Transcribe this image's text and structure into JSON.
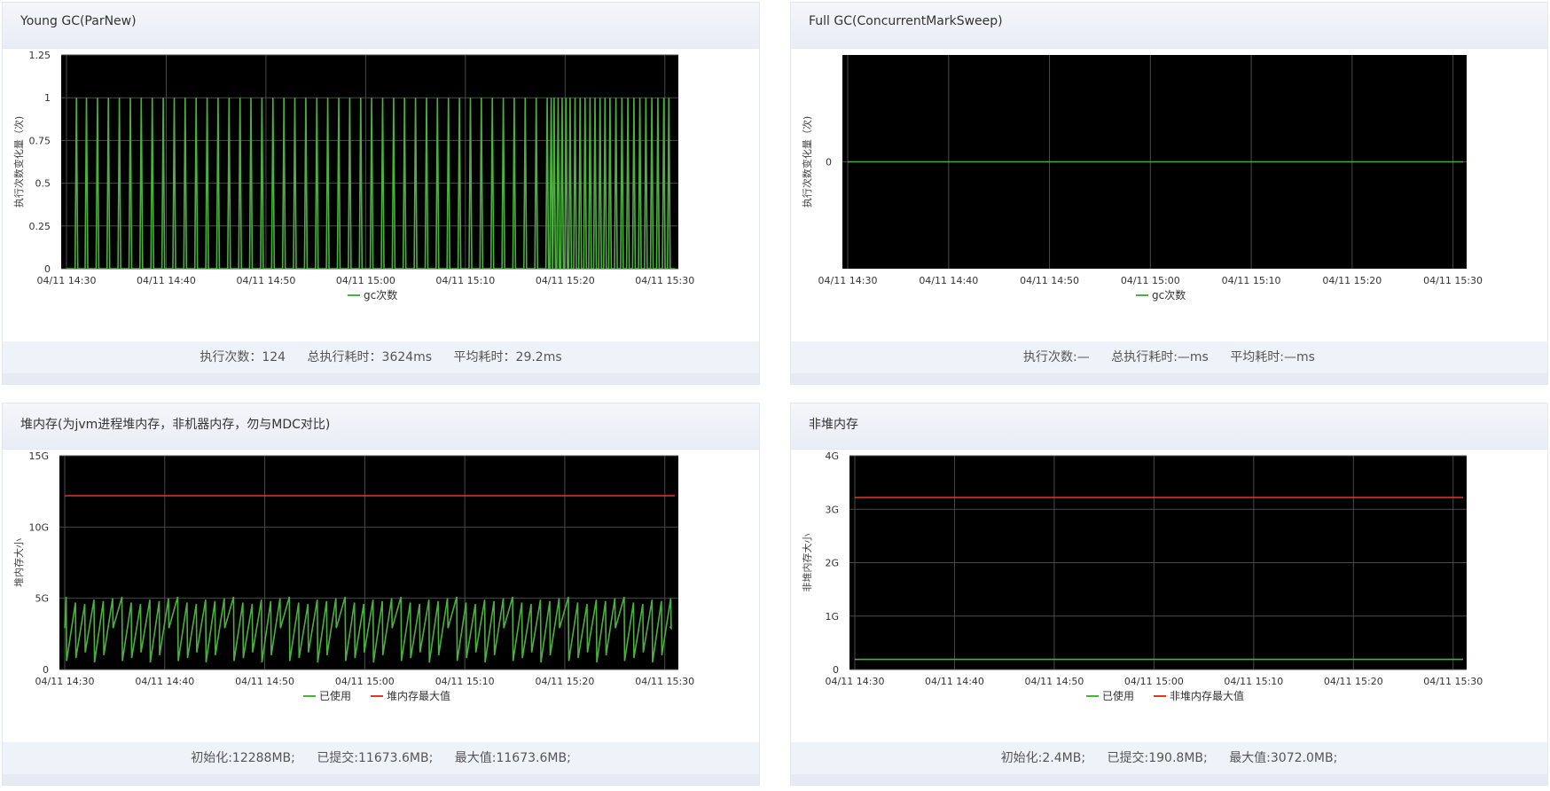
{
  "panels": [
    {
      "title": "Young GC(ParNew)",
      "footer": [
        "执行次数：124",
        "总执行耗时：3624ms",
        "平均耗时：29.2ms"
      ],
      "chart_data": {
        "type": "line",
        "title": "Young GC(ParNew)",
        "ylabel": "执行次数变化量（次)",
        "xlabel": "",
        "x_ticks": [
          "04/11 14:30",
          "04/11 14:40",
          "04/11 14:50",
          "04/11 15:00",
          "04/11 15:10",
          "04/11 15:20",
          "04/11 15:30"
        ],
        "y_ticks": [
          "0",
          "0.25",
          "0.5",
          "0.75",
          "1",
          "1.25"
        ],
        "ylim": [
          0,
          1.25
        ],
        "xlim_minutes": [
          0,
          61
        ],
        "grid": true,
        "legend": "bottom-center",
        "series": [
          {
            "name": "gc次数",
            "color": "#4caf3f",
            "kind": "spikes",
            "value_high": 1,
            "value_low": 0,
            "spike_minutes": [
              1,
              2,
              3.1,
              4.2,
              5.3,
              6.4,
              7.5,
              8.6,
              9.7,
              10.8,
              11.9,
              13,
              14.1,
              15.2,
              16.3,
              17.4,
              18.5,
              19.6,
              20.7,
              21.8,
              22.9,
              24,
              25.1,
              26.2,
              27.3,
              28.4,
              29.5,
              30.6,
              31.7,
              32.8,
              33.9,
              35,
              36.1,
              37.2,
              38.3,
              39.4,
              40.5,
              41.6,
              42.7,
              43.8,
              44.9,
              46,
              47.1,
              48.2,
              48.6,
              48.9,
              49.3,
              49.7,
              50.1,
              50.5,
              51,
              51.5,
              52,
              52.5,
              53,
              53.5,
              54,
              54.5,
              55.1,
              55.7,
              56.3,
              56.9,
              57.5,
              58.1,
              58.7,
              59.3,
              59.9,
              60.4
            ]
          }
        ]
      }
    },
    {
      "title": "Full GC(ConcurrentMarkSweep)",
      "footer": [
        "执行次数:—",
        "总执行耗时:—ms",
        "平均耗时:—ms"
      ],
      "chart_data": {
        "type": "line",
        "title": "Full GC(ConcurrentMarkSweep)",
        "ylabel": "执行次数变化量（次)",
        "xlabel": "",
        "x_ticks": [
          "04/11 14:30",
          "04/11 14:40",
          "04/11 14:50",
          "04/11 15:00",
          "04/11 15:10",
          "04/11 15:20",
          "04/11 15:30"
        ],
        "y_ticks": [
          "0"
        ],
        "ylim": [
          -1,
          1
        ],
        "xlim_minutes": [
          0,
          61
        ],
        "grid": true,
        "legend": "bottom-center",
        "series": [
          {
            "name": "gc次数",
            "color": "#4caf3f",
            "kind": "constant",
            "value": 0
          }
        ]
      }
    },
    {
      "title": "堆内存(为jvm进程堆内存，非机器内存，勿与MDC对比)",
      "footer": [
        "初始化:12288MB;",
        "已提交:11673.6MB;",
        "最大值:11673.6MB;"
      ],
      "chart_data": {
        "type": "line",
        "title": "堆内存(为jvm进程堆内存，非机器内存，勿与MDC对比)",
        "ylabel": "堆内存大小",
        "xlabel": "",
        "x_ticks": [
          "04/11 14:30",
          "04/11 14:40",
          "04/11 14:50",
          "04/11 15:00",
          "04/11 15:10",
          "04/11 15:20",
          "04/11 15:30"
        ],
        "y_ticks": [
          "0",
          "5G",
          "10G",
          "15G"
        ],
        "ylim": [
          0,
          15
        ],
        "xlim_minutes": [
          0,
          61
        ],
        "grid": true,
        "legend": "bottom-center",
        "series": [
          {
            "name": "已使用",
            "color": "#4caf3f",
            "kind": "sawtooth",
            "unit": "G",
            "low": 0.5,
            "high": 5.1,
            "period_minutes": 0.93,
            "start_minutes": 0,
            "end_minutes": 60.5
          },
          {
            "name": "堆内存最大值",
            "color": "#e8352a",
            "kind": "constant",
            "value": 12.2
          }
        ]
      }
    },
    {
      "title": "非堆内存",
      "footer": [
        "初始化:2.4MB;",
        "已提交:190.8MB;",
        "最大值:3072.0MB;"
      ],
      "chart_data": {
        "type": "line",
        "title": "非堆内存",
        "ylabel": "非堆内存大小",
        "xlabel": "",
        "x_ticks": [
          "04/11 14:30",
          "04/11 14:40",
          "04/11 14:50",
          "04/11 15:00",
          "04/11 15:10",
          "04/11 15:20",
          "04/11 15:30"
        ],
        "y_ticks": [
          "0",
          "1G",
          "2G",
          "3G",
          "4G"
        ],
        "ylim": [
          0,
          4
        ],
        "xlim_minutes": [
          0,
          61
        ],
        "grid": true,
        "legend": "bottom-center",
        "series": [
          {
            "name": "已使用",
            "color": "#4caf3f",
            "kind": "constant",
            "value": 0.19
          },
          {
            "name": "非堆内存最大值",
            "color": "#e8352a",
            "kind": "constant",
            "value": 3.22
          }
        ]
      }
    }
  ]
}
